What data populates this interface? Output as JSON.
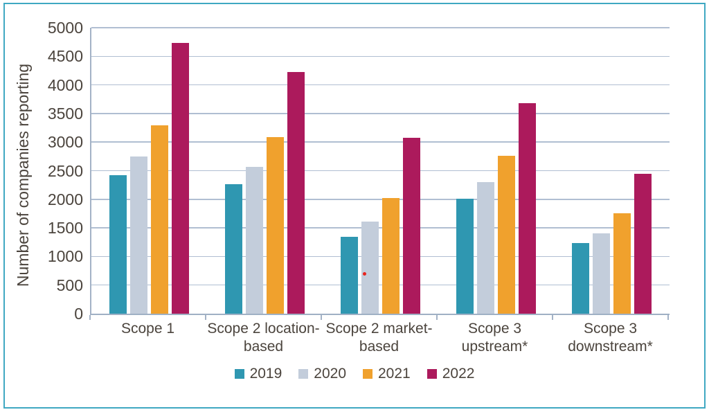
{
  "frame": {
    "border_color": "#3fa8c2"
  },
  "colors": {
    "text": "#4b443d",
    "axis": "#9fb0c4",
    "gridline": "#b0bed2",
    "series_2019": "#2f97b1",
    "series_2020": "#c3cddb",
    "series_2021": "#f0a12d",
    "series_2022": "#ac1a5c",
    "stray_dot": "#e8251f"
  },
  "chart_data": {
    "type": "bar",
    "title": "",
    "xlabel": "",
    "ylabel": "Number of companies reporting",
    "ylim": [
      0,
      5000
    ],
    "ytick_step": 500,
    "yticks": [
      0,
      500,
      1000,
      1500,
      2000,
      2500,
      3000,
      3500,
      4000,
      4500,
      5000
    ],
    "grid": true,
    "legend_position": "bottom",
    "categories": [
      "Scope 1",
      "Scope 2 location-based",
      "Scope 2 market-based",
      "Scope 3 upstream*",
      "Scope 3 downstream*"
    ],
    "category_labels": [
      "Scope 1",
      "Scope 2 location-\nbased",
      "Scope 2 market-\nbased",
      "Scope 3\nupstream*",
      "Scope 3\ndownstream*"
    ],
    "series": [
      {
        "name": "2019",
        "color": "#2f97b1",
        "values": [
          2420,
          2260,
          1350,
          2010,
          1230
        ]
      },
      {
        "name": "2020",
        "color": "#c3cddb",
        "values": [
          2750,
          2570,
          1610,
          2300,
          1400
        ]
      },
      {
        "name": "2021",
        "color": "#f0a12d",
        "values": [
          3290,
          3090,
          2020,
          2760,
          1760
        ]
      },
      {
        "name": "2022",
        "color": "#ac1a5c",
        "values": [
          4730,
          4230,
          3080,
          3680,
          2450
        ]
      }
    ],
    "annotations": [
      {
        "type": "dot",
        "color": "#e8251f",
        "category_index": 2,
        "series_index": 1,
        "value": 700
      }
    ]
  }
}
